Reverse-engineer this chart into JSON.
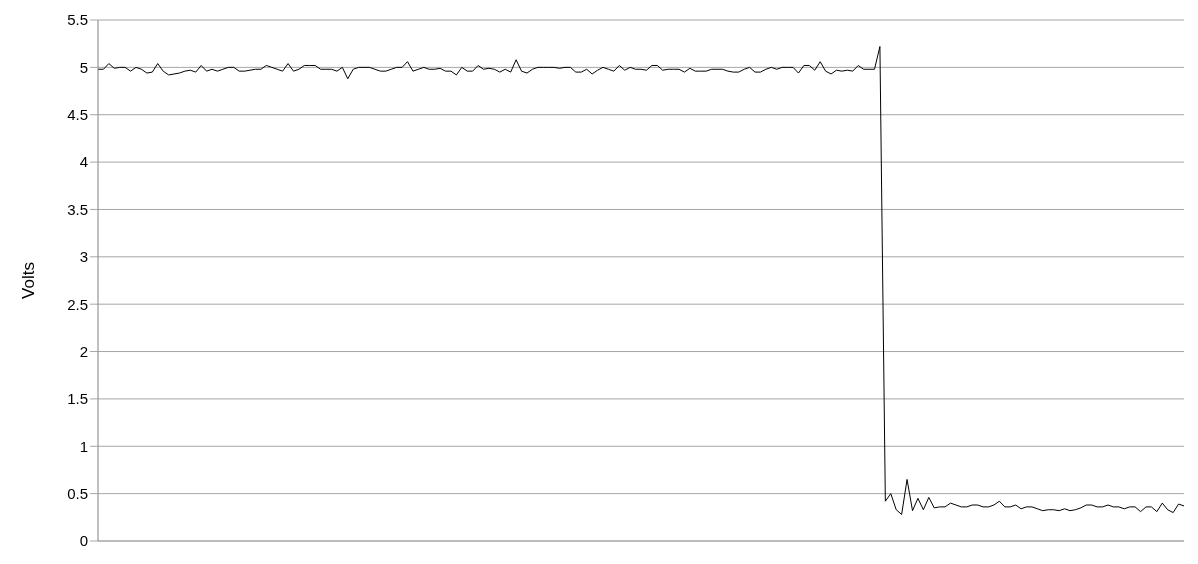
{
  "chart_data": {
    "type": "line",
    "ylabel": "Volts",
    "categories": [
      null,
      null,
      null,
      null,
      null,
      null,
      null,
      null,
      null,
      null,
      null,
      null,
      null,
      null,
      null,
      null,
      null,
      null,
      null,
      null,
      null,
      null,
      null,
      null,
      null,
      null,
      null,
      null,
      null,
      null,
      null,
      null,
      null,
      null,
      null,
      null,
      null,
      null,
      null,
      null,
      null,
      null,
      null,
      null,
      null,
      null,
      null,
      null,
      null,
      null,
      null,
      null,
      null,
      null,
      null,
      null,
      null,
      null,
      null,
      null,
      null,
      null,
      null,
      null,
      null,
      null,
      null,
      null,
      null,
      null,
      null,
      null,
      null,
      null,
      null,
      null,
      null,
      null,
      null,
      null,
      null,
      null,
      null,
      null,
      null,
      null,
      null,
      null,
      null,
      null,
      null,
      null,
      null,
      null,
      null,
      null,
      null,
      null,
      null,
      null,
      null,
      null,
      null,
      null,
      null,
      null,
      null,
      null,
      null,
      null,
      null,
      null,
      null,
      null,
      null,
      null,
      null,
      null,
      null,
      null,
      null,
      null,
      null,
      null,
      null,
      null,
      null,
      null,
      null,
      null,
      null,
      null,
      null,
      null,
      null,
      null,
      null,
      null,
      null,
      null,
      null,
      null,
      null,
      null,
      null,
      null,
      null,
      null,
      null,
      null,
      null,
      null,
      null,
      null,
      null,
      null,
      null,
      null,
      null,
      null,
      null,
      null,
      null,
      null,
      null,
      null,
      null,
      null,
      null,
      null,
      null,
      null,
      null,
      null,
      null,
      null,
      null,
      null,
      null,
      null,
      null,
      null,
      null,
      null,
      null,
      null,
      null,
      null,
      null,
      null,
      null,
      null,
      null,
      null,
      null,
      null,
      null,
      null,
      null,
      null,
      null
    ],
    "series": [
      {
        "color": "#000000",
        "values": [
          4.98,
          4.98,
          5.04,
          4.99,
          5.0,
          5.0,
          4.96,
          5.0,
          4.98,
          4.94,
          4.95,
          5.04,
          4.96,
          4.92,
          4.93,
          4.94,
          4.96,
          4.97,
          4.95,
          5.02,
          4.96,
          4.98,
          4.96,
          4.98,
          5.0,
          5.0,
          4.96,
          4.96,
          4.97,
          4.98,
          4.98,
          5.02,
          5.0,
          4.98,
          4.96,
          5.04,
          4.96,
          4.98,
          5.02,
          5.02,
          5.02,
          4.98,
          4.98,
          4.98,
          4.96,
          5.0,
          4.88,
          4.98,
          5.0,
          5.0,
          5.0,
          4.98,
          4.96,
          4.96,
          4.98,
          5.0,
          5.0,
          5.06,
          4.96,
          4.98,
          5.0,
          4.98,
          4.98,
          4.99,
          4.96,
          4.96,
          4.92,
          5.0,
          4.96,
          4.96,
          5.02,
          4.98,
          4.99,
          4.98,
          4.95,
          4.98,
          4.95,
          5.08,
          4.96,
          4.94,
          4.98,
          5.0,
          5.0,
          5.0,
          5.0,
          4.99,
          5.0,
          5.0,
          4.95,
          4.95,
          4.98,
          4.93,
          4.97,
          5.0,
          4.98,
          4.96,
          5.02,
          4.97,
          5.0,
          4.98,
          4.98,
          4.97,
          5.02,
          5.02,
          4.97,
          4.98,
          4.98,
          4.98,
          4.95,
          4.99,
          4.96,
          4.96,
          4.96,
          4.98,
          4.98,
          4.98,
          4.96,
          4.95,
          4.95,
          4.98,
          5.0,
          4.95,
          4.95,
          4.98,
          5.0,
          4.98,
          5.0,
          5.0,
          5.0,
          4.94,
          5.02,
          5.02,
          4.97,
          5.06,
          4.96,
          4.93,
          4.97,
          4.96,
          4.97,
          4.96,
          5.02,
          4.98,
          4.98,
          4.98,
          5.22,
          0.42,
          0.5,
          0.33,
          0.28,
          0.65,
          0.32,
          0.45,
          0.33,
          0.46,
          0.35,
          0.36,
          0.36,
          0.4,
          0.38,
          0.36,
          0.36,
          0.38,
          0.38,
          0.36,
          0.36,
          0.38,
          0.42,
          0.36,
          0.36,
          0.38,
          0.34,
          0.36,
          0.36,
          0.34,
          0.32,
          0.33,
          0.33,
          0.32,
          0.34,
          0.32,
          0.33,
          0.35,
          0.38,
          0.38,
          0.36,
          0.36,
          0.38,
          0.36,
          0.36,
          0.34,
          0.36,
          0.36,
          0.31,
          0.36,
          0.36,
          0.31,
          0.4,
          0.33,
          0.3,
          0.39,
          0.37
        ]
      }
    ],
    "ylim": [
      0,
      5.5
    ],
    "yticks": [
      0,
      0.5,
      1,
      1.5,
      2,
      2.5,
      3,
      3.5,
      4,
      4.5,
      5,
      5.5
    ],
    "grid": "y",
    "legend": false,
    "marker": "none",
    "line_style": "solid"
  }
}
